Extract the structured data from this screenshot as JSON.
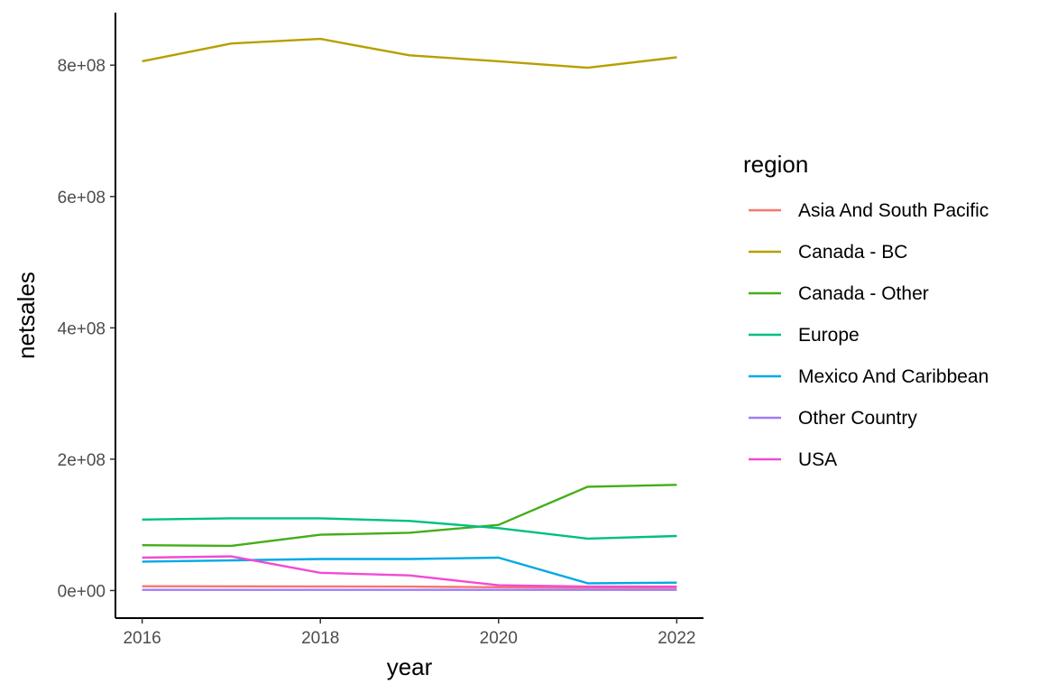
{
  "chart_data": {
    "type": "line",
    "title": "",
    "xlabel": "year",
    "ylabel": "netsales",
    "x": [
      2016,
      2017,
      2018,
      2019,
      2020,
      2021,
      2022
    ],
    "x_ticks": [
      "2016",
      "2018",
      "2020",
      "2022"
    ],
    "y_ticks": [
      "0e+00",
      "2e+08",
      "4e+08",
      "6e+08",
      "8e+08"
    ],
    "xlim": [
      2015.7,
      2022.3
    ],
    "ylim": [
      -42000000,
      880000000
    ],
    "grid": false,
    "legend": {
      "title": "region",
      "position": "right"
    },
    "series": [
      {
        "name": "Asia And South Pacific",
        "color": "#F8766D",
        "values": [
          6500000,
          6300000,
          6200000,
          6000000,
          5000000,
          4500000,
          4500000
        ]
      },
      {
        "name": "Canada - BC",
        "color": "#B79F00",
        "values": [
          806000000,
          833000000,
          840000000,
          815000000,
          806000000,
          796000000,
          812000000
        ]
      },
      {
        "name": "Canada - Other",
        "color": "#43AE1A",
        "values": [
          69000000,
          68000000,
          85000000,
          88000000,
          100000000,
          158000000,
          161000000
        ]
      },
      {
        "name": "Europe",
        "color": "#00BE86",
        "values": [
          108000000,
          110000000,
          110000000,
          106000000,
          95000000,
          79000000,
          83000000
        ]
      },
      {
        "name": "Mexico And Caribbean",
        "color": "#00A9E6",
        "values": [
          44000000,
          46000000,
          48000000,
          48000000,
          50000000,
          11000000,
          12000000
        ]
      },
      {
        "name": "Other Country",
        "color": "#9F7CF8",
        "values": [
          1000000,
          1000000,
          1000000,
          1000000,
          1000000,
          1000000,
          1000000
        ]
      },
      {
        "name": "USA",
        "color": "#F14BD5",
        "values": [
          50000000,
          52000000,
          27000000,
          23000000,
          8000000,
          6000000,
          6000000
        ]
      }
    ]
  }
}
